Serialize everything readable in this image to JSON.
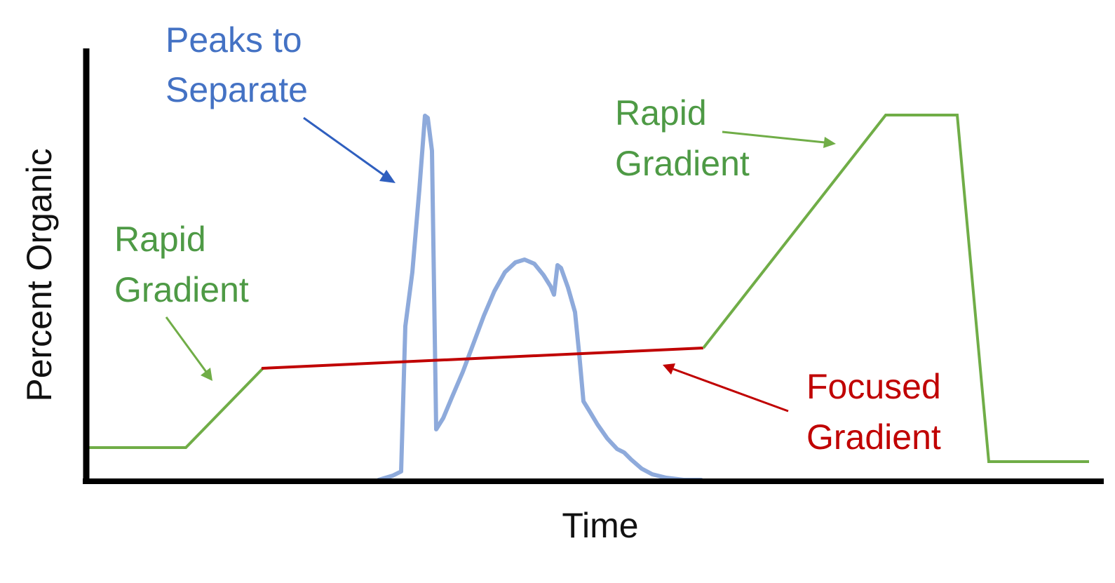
{
  "diagram": {
    "axes": {
      "y_label": "Percent Organic",
      "x_label": "Time"
    },
    "annotations": {
      "peaks": {
        "lines": [
          "Peaks to",
          "Separate"
        ]
      },
      "rapid_left": {
        "lines": [
          "Rapid",
          "Gradient"
        ]
      },
      "rapid_right": {
        "lines": [
          "Rapid",
          "Gradient"
        ]
      },
      "focused": {
        "lines": [
          "Focused",
          "Gradient"
        ]
      }
    },
    "colors": {
      "axis": "#000000",
      "rapid_gradient": "#70ad47",
      "rapid_text": "#4e9a45",
      "focused_gradient": "#c00000",
      "peaks": "#8eaadb",
      "peaks_text": "#4472c4",
      "peaks_arrow": "#2f5fbf"
    }
  }
}
